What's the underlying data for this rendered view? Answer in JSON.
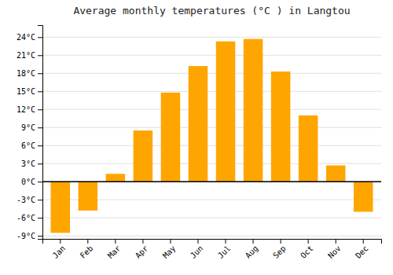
{
  "chart_data": {
    "type": "bar",
    "title": "Average monthly temperatures (°C ) in Langtou",
    "categories": [
      "Jan",
      "Feb",
      "Mar",
      "Apr",
      "May",
      "Jun",
      "Jul",
      "Aug",
      "Sep",
      "Oct",
      "Nov",
      "Dec"
    ],
    "values": [
      -8.5,
      -4.8,
      1.3,
      8.5,
      14.8,
      19.2,
      23.3,
      23.7,
      18.3,
      11.0,
      2.7,
      -5.0
    ],
    "color": "#FFA500",
    "ylim": [
      -9.5,
      26.0
    ],
    "yticks": [
      {
        "value": -9,
        "label": "-9°C"
      },
      {
        "value": -6,
        "label": "-6°C"
      },
      {
        "value": -3,
        "label": "-3°C"
      },
      {
        "value": 0,
        "label": "0°C"
      },
      {
        "value": 3,
        "label": "3°C"
      },
      {
        "value": 6,
        "label": "6°C"
      },
      {
        "value": 9,
        "label": "9°C"
      },
      {
        "value": 12,
        "label": "12°C"
      },
      {
        "value": 15,
        "label": "15°C"
      },
      {
        "value": 18,
        "label": "18°C"
      },
      {
        "value": 21,
        "label": "21°C"
      },
      {
        "value": 24,
        "label": "24°C"
      }
    ],
    "grid": true
  }
}
